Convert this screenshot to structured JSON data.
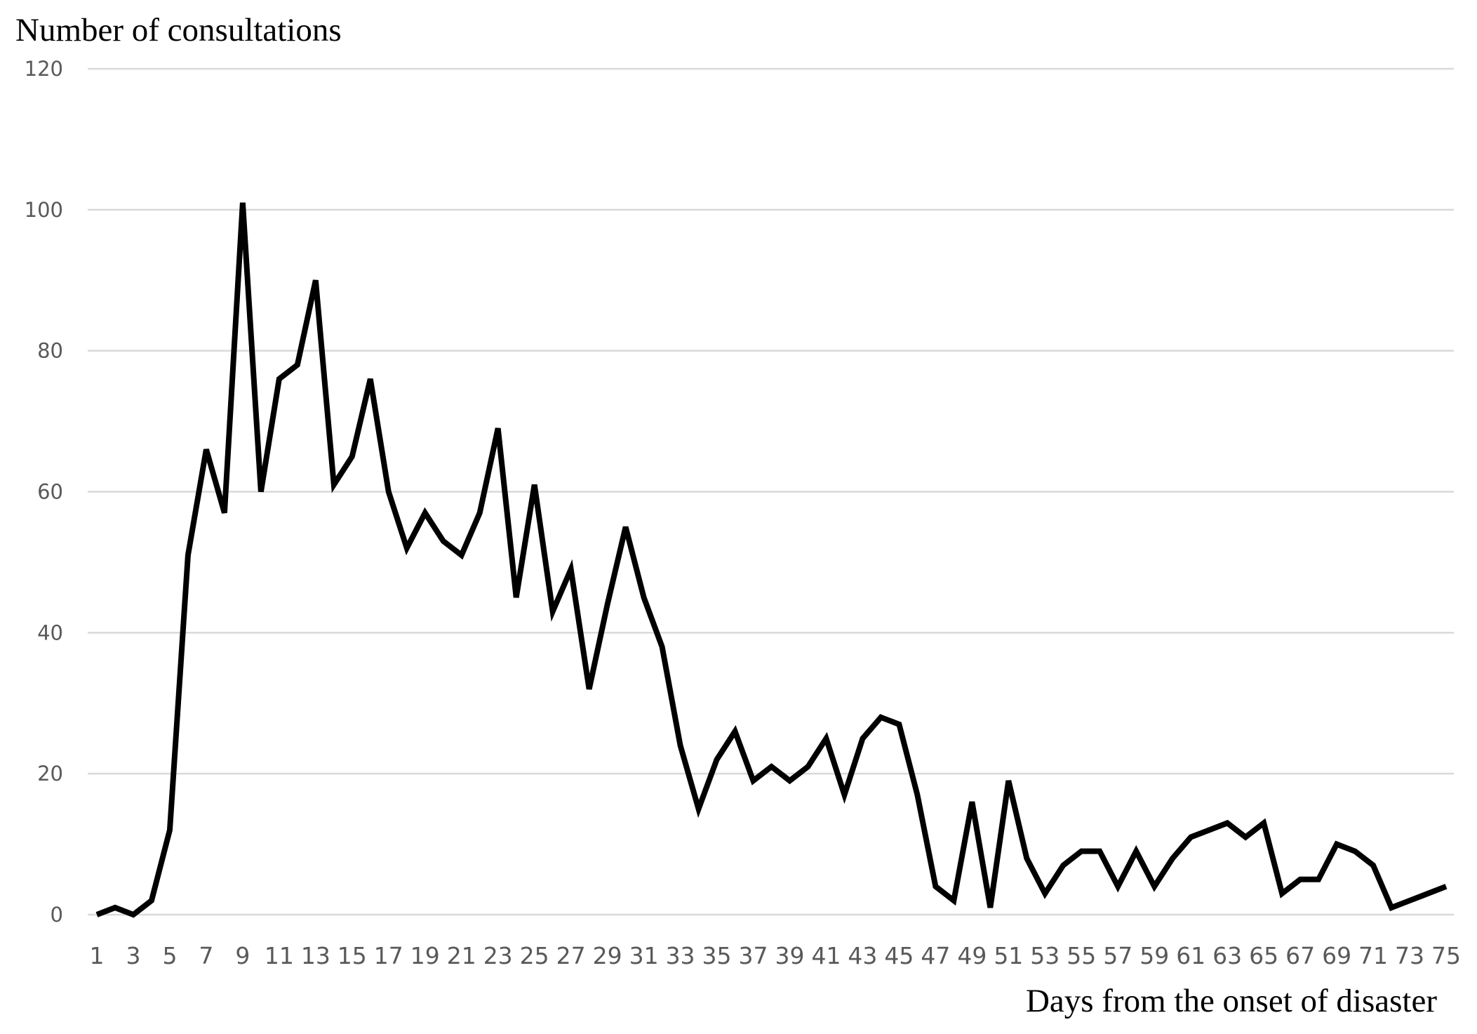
{
  "chart_data": {
    "type": "line",
    "ylabel": "Number of consultations",
    "xlabel": "Days from the onset of disaster",
    "ylim": [
      0,
      120
    ],
    "yticks": [
      0,
      20,
      40,
      60,
      80,
      100,
      120
    ],
    "xticks": [
      "1",
      "3",
      "5",
      "7",
      "9",
      "11",
      "13",
      "15",
      "17",
      "19",
      "21",
      "23",
      "25",
      "27",
      "29",
      "31",
      "33",
      "35",
      "37",
      "39",
      "41",
      "43",
      "45",
      "47",
      "49",
      "51",
      "53",
      "55",
      "57",
      "59",
      "61",
      "63",
      "65",
      "67",
      "69",
      "71",
      "73",
      "75"
    ],
    "grid": true,
    "x": [
      1,
      2,
      3,
      4,
      5,
      6,
      7,
      8,
      9,
      10,
      11,
      12,
      13,
      14,
      15,
      16,
      17,
      18,
      19,
      20,
      21,
      22,
      23,
      24,
      25,
      26,
      27,
      28,
      29,
      30,
      31,
      32,
      33,
      34,
      35,
      36,
      37,
      38,
      39,
      40,
      41,
      42,
      43,
      44,
      45,
      46,
      47,
      48,
      49,
      50,
      51,
      52,
      53,
      54,
      55,
      56,
      57,
      58,
      59,
      60,
      61,
      62,
      63,
      64,
      65,
      66,
      67,
      68,
      69,
      70,
      71,
      72,
      73,
      74,
      75
    ],
    "values": [
      0,
      1,
      0,
      2,
      12,
      51,
      66,
      57,
      101,
      60,
      76,
      78,
      90,
      61,
      65,
      76,
      60,
      52,
      57,
      53,
      51,
      57,
      69,
      45,
      61,
      43,
      49,
      32,
      44,
      55,
      45,
      38,
      24,
      15,
      22,
      26,
      19,
      21,
      19,
      21,
      25,
      17,
      25,
      28,
      27,
      17,
      4,
      2,
      16,
      1,
      19,
      8,
      3,
      7,
      9,
      9,
      4,
      9,
      4,
      8,
      11,
      12,
      13,
      11,
      13,
      3,
      5,
      5,
      10,
      9,
      7,
      1,
      2,
      3,
      4
    ]
  }
}
